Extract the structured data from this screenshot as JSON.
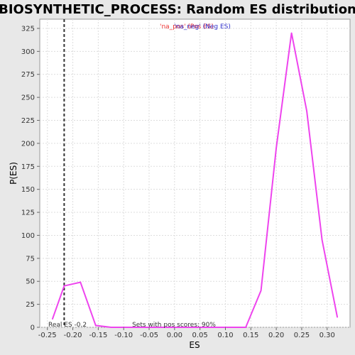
{
  "chart_data": {
    "type": "line",
    "title": "BIOSYNTHETIC_PROCESS: Random ES distribution",
    "xlabel": "ES",
    "ylabel": "P(ES)",
    "xlim": [
      -0.265,
      0.345
    ],
    "ylim": [
      0,
      335
    ],
    "xticks": [
      -0.25,
      -0.2,
      -0.15,
      -0.1,
      -0.05,
      0.0,
      0.05,
      0.1,
      0.15,
      0.2,
      0.25,
      0.3
    ],
    "xtick_labels": [
      "-0.25",
      "-0.20",
      "-0.15",
      "-0.10",
      "-0.05",
      "0.00",
      "0.05",
      "0.10",
      "0.15",
      "0.20",
      "0.25",
      "0.30"
    ],
    "yticks": [
      0,
      25,
      50,
      75,
      100,
      125,
      150,
      175,
      200,
      225,
      250,
      275,
      300,
      325
    ],
    "grid": true,
    "series": [
      {
        "color": "#ee44ee",
        "x": [
          -0.24,
          -0.217,
          -0.185,
          -0.155,
          -0.125,
          -0.095,
          0.14,
          0.17,
          0.2,
          0.23,
          0.26,
          0.29,
          0.32
        ],
        "y": [
          9,
          45,
          49,
          2,
          0,
          0,
          0,
          40,
          195,
          320,
          235,
          95,
          11
        ]
      }
    ],
    "vline": {
      "x": -0.217,
      "label": "Real ES -0.2",
      "style": "dashed"
    },
    "legend": {
      "placement": "top-center",
      "entries": [
        {
          "text": "'na_pos' (Pos ES)",
          "color": "#ee3333"
        },
        {
          "text": "'na_neg' (Neg ES)",
          "color": "#3333cc"
        }
      ]
    },
    "annotations": {
      "sets_with_pos": "Sets with pos scores: 90%"
    }
  }
}
